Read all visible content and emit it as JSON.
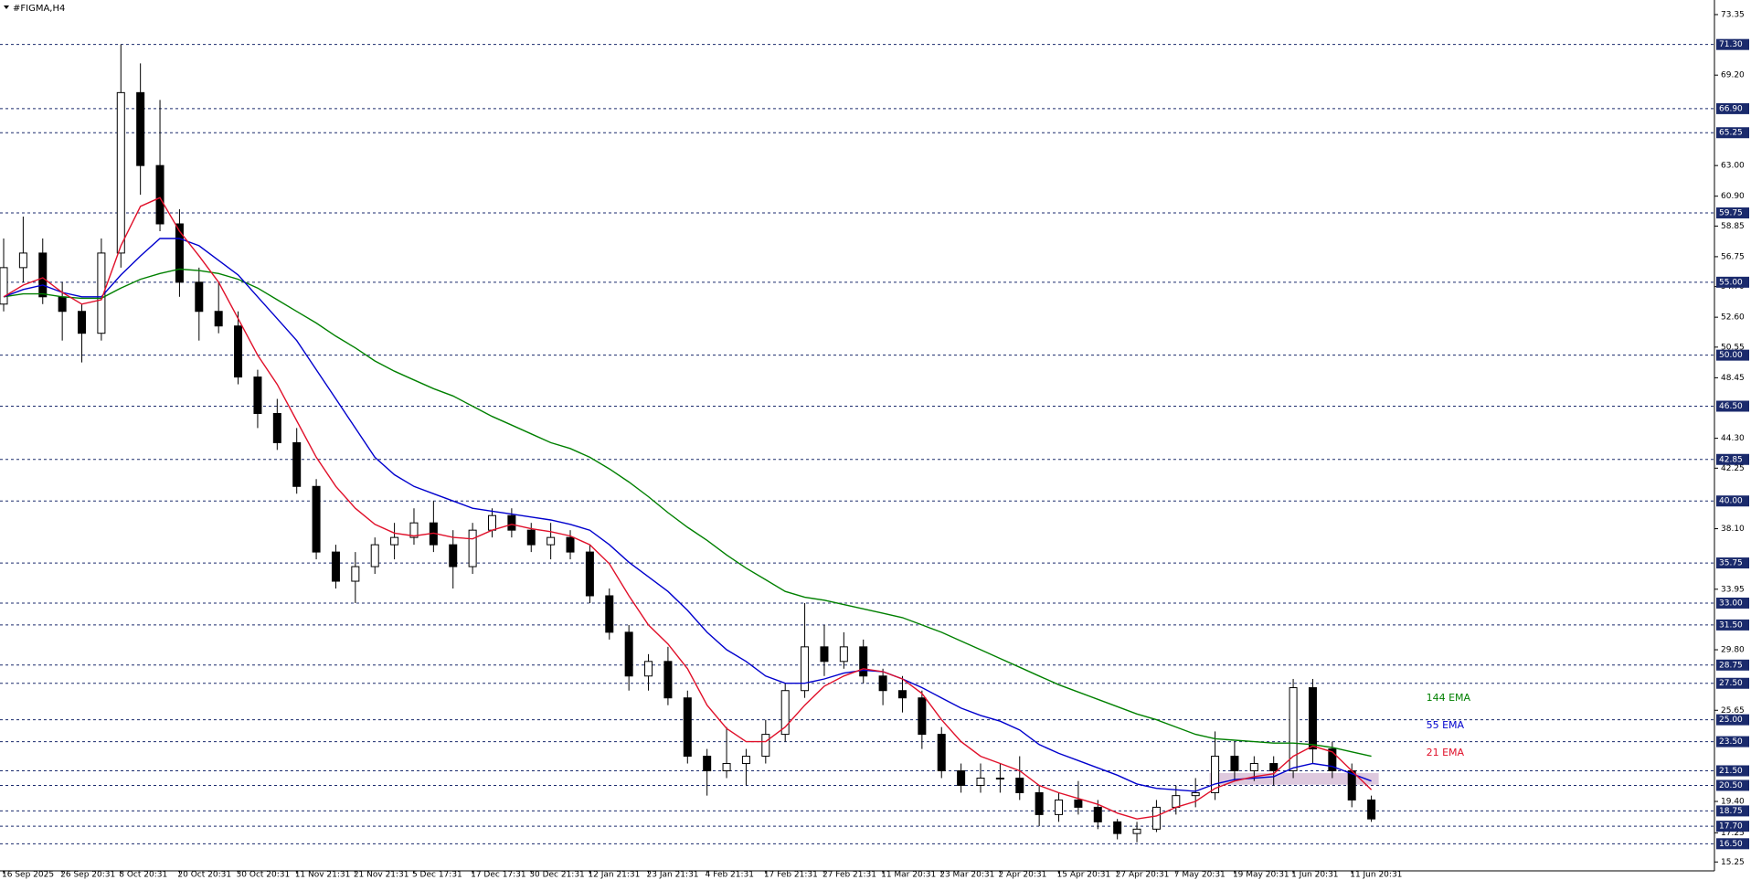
{
  "chart_data": {
    "type": "candlestick",
    "title": "#FIGMA,H4",
    "categories": [
      "16 Sep 2025",
      null,
      null,
      "26 Sep 20:31",
      null,
      null,
      "8 Oct 20:31",
      null,
      null,
      "20 Oct 20:31",
      null,
      null,
      "30 Oct 20:31",
      null,
      null,
      "11 Nov 21:31",
      null,
      null,
      "21 Nov 21:31",
      null,
      null,
      "5 Dec 17:31",
      null,
      null,
      "17 Dec 17:31",
      null,
      null,
      "30 Dec 21:31",
      null,
      null,
      "12 Jan 21:31",
      null,
      null,
      "23 Jan 21:31",
      null,
      null,
      "4 Feb 21:31",
      null,
      null,
      "17 Feb 21:31",
      null,
      null,
      "27 Feb 21:31",
      null,
      null,
      "11 Mar 20:31",
      null,
      null,
      "23 Mar 20:31",
      null,
      null,
      "2 Apr 20:31",
      null,
      null,
      "15 Apr 20:31",
      null,
      null,
      "27 Apr 20:31",
      null,
      null,
      "7 May 20:31",
      null,
      null,
      "19 May 20:31",
      null,
      null,
      "1 Jun 20:31",
      null,
      null,
      "11 Jun 20:31",
      null
    ],
    "open": [
      53.5,
      56,
      57,
      54,
      53,
      51.5,
      57,
      68,
      63,
      59,
      55,
      53,
      52,
      48.5,
      46,
      44,
      41,
      36.5,
      34.5,
      35.5,
      37,
      37.5,
      38.5,
      37,
      35.5,
      38,
      39,
      38,
      37,
      37.5,
      36.5,
      33.5,
      31,
      28,
      29,
      26.5,
      22.5,
      21.5,
      22,
      22.5,
      24,
      27,
      30,
      29,
      30,
      28,
      27,
      26.5,
      24,
      21.5,
      20.5,
      21,
      21,
      20,
      18.5,
      19.5,
      19,
      18,
      17.2,
      17.5,
      19,
      19.8,
      20,
      22.5,
      21.5,
      22,
      21.5,
      27.2,
      23,
      21.5,
      19.5
    ],
    "high": [
      58,
      59.5,
      58,
      55,
      53.5,
      58,
      71.3,
      70,
      67.5,
      60,
      56,
      55,
      53,
      49,
      47,
      45,
      41.5,
      37,
      36.5,
      37.5,
      38.5,
      39.5,
      40,
      38,
      38.5,
      39.5,
      39.5,
      38.5,
      38.5,
      38,
      37,
      34,
      31.5,
      29.5,
      30,
      27,
      23,
      24.5,
      23,
      25,
      27.5,
      33,
      31.5,
      31,
      30.5,
      28.5,
      28,
      27,
      24.5,
      22,
      22,
      22,
      22.5,
      20.5,
      20,
      20.8,
      19.5,
      18.2,
      18,
      19.5,
      20.5,
      21,
      24.2,
      23.5,
      22.5,
      22.5,
      27.8,
      27.8,
      23.5,
      22,
      19.8
    ],
    "low": [
      53,
      55,
      53.5,
      51,
      49.5,
      51,
      56,
      61,
      58.5,
      54,
      51,
      51.5,
      48,
      45,
      43.5,
      40.5,
      36,
      34,
      33,
      35,
      36,
      37,
      36.5,
      34,
      35,
      37.5,
      37.5,
      36.5,
      36,
      36,
      33,
      30.5,
      27,
      27,
      26,
      22,
      19.8,
      21,
      20.5,
      22,
      23.5,
      26.5,
      28,
      28.5,
      27.5,
      26,
      25.5,
      23,
      21,
      20,
      20,
      20,
      19.5,
      17.7,
      18,
      18.5,
      17.5,
      16.8,
      16.6,
      17.3,
      18.5,
      19,
      19.5,
      20.8,
      20.8,
      20.5,
      21,
      22,
      21,
      19,
      18
    ],
    "close": [
      56,
      57,
      54,
      53,
      51.5,
      57,
      68,
      63,
      59,
      55,
      53,
      52,
      48.5,
      46,
      44,
      41,
      36.5,
      34.5,
      35.5,
      37,
      37.5,
      38.5,
      37,
      35.5,
      38,
      39,
      38,
      37,
      37.5,
      36.5,
      33.5,
      31,
      28,
      29,
      26.5,
      22.5,
      21.5,
      22,
      22.5,
      24,
      27,
      30,
      29,
      30,
      28,
      27,
      26.5,
      24,
      21.5,
      20.5,
      21,
      21,
      20,
      18.5,
      19.5,
      19,
      18,
      17.2,
      17.5,
      19,
      19.8,
      20,
      22.5,
      21.5,
      22,
      21.5,
      27.2,
      23,
      21.5,
      19.5,
      18.2
    ],
    "series": [
      {
        "name": "144 EMA",
        "color": "#008000",
        "values": [
          54,
          54.2,
          54.2,
          54,
          53.9,
          53.9,
          54.6,
          55.2,
          55.6,
          55.9,
          55.8,
          55.6,
          55.2,
          54.6,
          53.8,
          53,
          52.2,
          51.3,
          50.5,
          49.6,
          48.9,
          48.3,
          47.7,
          47.2,
          46.5,
          45.8,
          45.2,
          44.6,
          44,
          43.6,
          43,
          42.2,
          41.3,
          40.3,
          39.2,
          38.2,
          37.3,
          36.3,
          35.4,
          34.6,
          33.8,
          33.4,
          33.2,
          32.9,
          32.6,
          32.3,
          32,
          31.5,
          31,
          30.4,
          29.8,
          29.2,
          28.6,
          28,
          27.4,
          26.9,
          26.4,
          25.9,
          25.4,
          25,
          24.5,
          24,
          23.7,
          23.6,
          23.5,
          23.4,
          23.4,
          23.3,
          23.1,
          22.8,
          22.5
        ]
      },
      {
        "name": "55 EMA",
        "color": "#0000cd",
        "values": [
          54,
          54.5,
          54.8,
          54.3,
          54,
          54,
          55.5,
          56.8,
          58,
          58,
          57.5,
          56.5,
          55.5,
          54,
          52.5,
          51,
          49,
          47,
          45,
          43,
          41.8,
          41,
          40.5,
          40,
          39.5,
          39.3,
          39.1,
          38.9,
          38.7,
          38.4,
          38,
          37,
          35.8,
          34.8,
          33.8,
          32.5,
          31,
          29.8,
          29,
          28,
          27.5,
          27.5,
          27.8,
          28.2,
          28.4,
          28.3,
          27.8,
          27.2,
          26.5,
          25.8,
          25.3,
          24.9,
          24.3,
          23.3,
          22.7,
          22.2,
          21.7,
          21.2,
          20.6,
          20.3,
          20.2,
          20.1,
          20.6,
          20.9,
          21,
          21.1,
          21.7,
          22,
          21.8,
          21.3,
          20.8
        ]
      },
      {
        "name": "21 EMA",
        "color": "#e0102a",
        "values": [
          54,
          54.8,
          55.3,
          54.3,
          53.5,
          53.8,
          57.5,
          60.2,
          60.8,
          58.5,
          56.8,
          55,
          52.5,
          50,
          48,
          45.5,
          43,
          41,
          39.5,
          38.4,
          37.8,
          37.6,
          37.8,
          37.5,
          37.4,
          38,
          38.4,
          38.1,
          37.9,
          37.6,
          37,
          35.7,
          33.5,
          31.5,
          30.2,
          28.5,
          26,
          24.4,
          23.5,
          23.5,
          24.5,
          26,
          27.3,
          28,
          28.5,
          28.3,
          27.8,
          26.8,
          25,
          23.5,
          22.5,
          22,
          21.5,
          20.5,
          20,
          19.6,
          19.2,
          18.6,
          18.2,
          18.4,
          19,
          19.4,
          20.3,
          20.8,
          21.1,
          21.3,
          22.5,
          23.2,
          22.8,
          21.5,
          20.2
        ]
      }
    ],
    "zone": {
      "from": 62,
      "to": 70,
      "low": 20.55,
      "high": 21.35,
      "color": "#d8bfd8"
    },
    "ylim": [
      14.64,
      74.35
    ],
    "yticks": [
      73.35,
      {
        "value": 69.2,
        "label": "69.20"
      },
      {
        "value": 63,
        "label": "63.00"
      },
      {
        "value": 60.9,
        "label": "60.90"
      },
      58.85,
      56.75,
      {
        "value": 54.7,
        "label": "54.70"
      },
      {
        "value": 52.6,
        "label": "52.60"
      },
      50.55,
      48.45,
      {
        "value": 44.3,
        "label": "44.30"
      },
      42.25,
      {
        "value": 38.1,
        "label": "38.10"
      },
      33.95,
      {
        "value": 29.8,
        "label": "29.80"
      },
      25.65,
      {
        "value": 19.4,
        "label": "19.40"
      },
      17.25,
      15.25
    ],
    "levels": [
      {
        "value": 71.3,
        "label": "71.30"
      },
      {
        "value": 66.9,
        "label": "66.90"
      },
      65.25,
      59.75,
      {
        "value": 55,
        "label": "55.00"
      },
      {
        "value": 50,
        "label": "50.00"
      },
      {
        "value": 46.5,
        "label": "46.50"
      },
      42.85,
      {
        "value": 40,
        "label": "40.00"
      },
      35.75,
      {
        "value": 33,
        "label": "33.00"
      },
      {
        "value": 31.5,
        "label": "31.50"
      },
      28.75,
      {
        "value": 27.5,
        "label": "27.50"
      },
      {
        "value": 25,
        "label": "25.00"
      },
      {
        "value": 23.5,
        "label": "23.50"
      },
      {
        "value": 21.5,
        "label": "21.50"
      },
      {
        "value": 20.5,
        "label": "20.50"
      },
      18.75,
      {
        "value": 17.7,
        "label": "17.70"
      },
      {
        "value": 16.5,
        "label": "16.50"
      }
    ],
    "level_color": "#1a2a6c"
  }
}
